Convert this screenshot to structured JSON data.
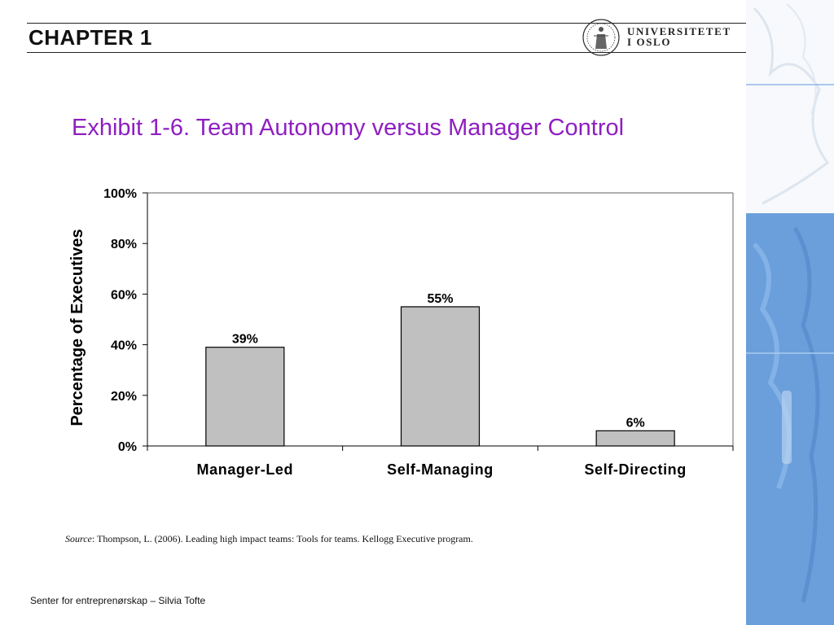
{
  "header": {
    "chapter": "CHAPTER 1",
    "logo_line1": "UNIVERSITETET",
    "logo_line2": "I OSLO"
  },
  "slide": {
    "title": "Exhibit 1-6.  Team Autonomy versus Manager Control"
  },
  "chart_data": {
    "type": "bar",
    "categories": [
      "Manager-Led",
      "Self-Managing",
      "Self-Directing"
    ],
    "values": [
      39,
      55,
      6
    ],
    "data_labels": [
      "39%",
      "55%",
      "6%"
    ],
    "title": "",
    "xlabel": "",
    "ylabel": "Percentage of Executives",
    "ylim": [
      0,
      100
    ],
    "yticks": [
      "0%",
      "20%",
      "40%",
      "60%",
      "80%",
      "100%"
    ],
    "grid": false,
    "legend": "none",
    "bar_color": "#c0c0c0"
  },
  "source": {
    "label": "Source",
    "text": ": Thompson, L. (2006). Leading high impact teams: Tools for teams. Kellogg Executive program."
  },
  "footer": {
    "text": "Senter for entreprenørskap – Silvia Tofte"
  },
  "colors": {
    "title": "#8e1fc0",
    "side_panel": "#6a9fdc"
  }
}
